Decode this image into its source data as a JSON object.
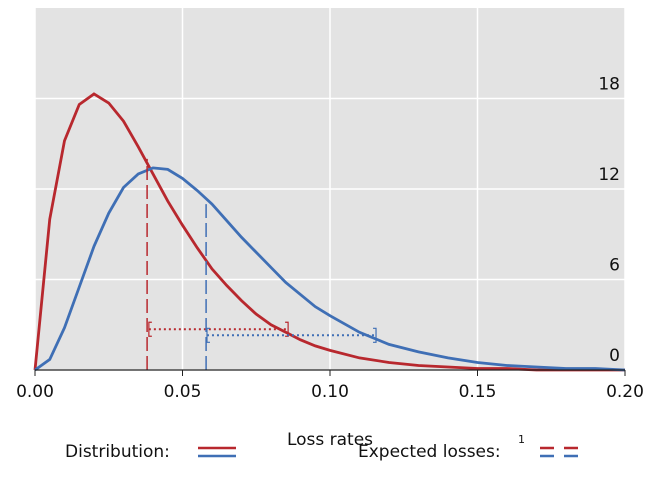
{
  "chart_data": {
    "type": "line",
    "x_label": "Loss rates",
    "x": [
      0,
      0.005,
      0.01,
      0.015,
      0.02,
      0.025,
      0.03,
      0.035,
      0.04,
      0.045,
      0.05,
      0.055,
      0.06,
      0.065,
      0.07,
      0.075,
      0.08,
      0.085,
      0.09,
      0.095,
      0.1,
      0.11,
      0.12,
      0.13,
      0.14,
      0.15,
      0.16,
      0.17,
      0.18,
      0.19,
      0.2
    ],
    "series": [
      {
        "color": "#b8282e",
        "values": [
          0,
          10.0,
          15.2,
          17.6,
          18.3,
          17.7,
          16.5,
          14.8,
          13.0,
          11.2,
          9.6,
          8.1,
          6.7,
          5.6,
          4.6,
          3.7,
          3.0,
          2.5,
          2.0,
          1.6,
          1.3,
          0.8,
          0.5,
          0.3,
          0.2,
          0.1,
          0.1,
          0.0,
          0,
          0,
          0
        ]
      },
      {
        "color": "#3f6fb5",
        "values": [
          0,
          0.7,
          2.8,
          5.5,
          8.2,
          10.4,
          12.1,
          13.0,
          13.4,
          13.3,
          12.7,
          11.9,
          11.0,
          9.9,
          8.8,
          7.8,
          6.8,
          5.8,
          5.0,
          4.2,
          3.6,
          2.5,
          1.7,
          1.2,
          0.8,
          0.5,
          0.3,
          0.2,
          0.1,
          0.1,
          0.0
        ]
      }
    ],
    "expected_losses": [
      {
        "color": "#b8282e",
        "mean": 0.038,
        "mean_density": 14,
        "range": [
          0.0386,
          0.0858
        ],
        "range_level": 2.7
      },
      {
        "color": "#3f6fb5",
        "mean": 0.058,
        "mean_density": 11,
        "range": [
          0.0583,
          0.1156
        ],
        "range_level": 2.3
      }
    ],
    "xlim": [
      0,
      0.2
    ],
    "xticks": [
      {
        "value": 0,
        "label": "0.00"
      },
      {
        "value": 0.05,
        "label": "0.05"
      },
      {
        "value": 0.1,
        "label": "0.10"
      },
      {
        "value": 0.15,
        "label": "0.15"
      },
      {
        "value": 0.2,
        "label": "0.20"
      }
    ],
    "ylim": [
      0,
      24
    ],
    "yticks": [
      0,
      6,
      12,
      18
    ],
    "grid": true,
    "legend": {
      "distribution": "Distribution:",
      "expected": "Expected losses:",
      "footnote": "1"
    }
  }
}
